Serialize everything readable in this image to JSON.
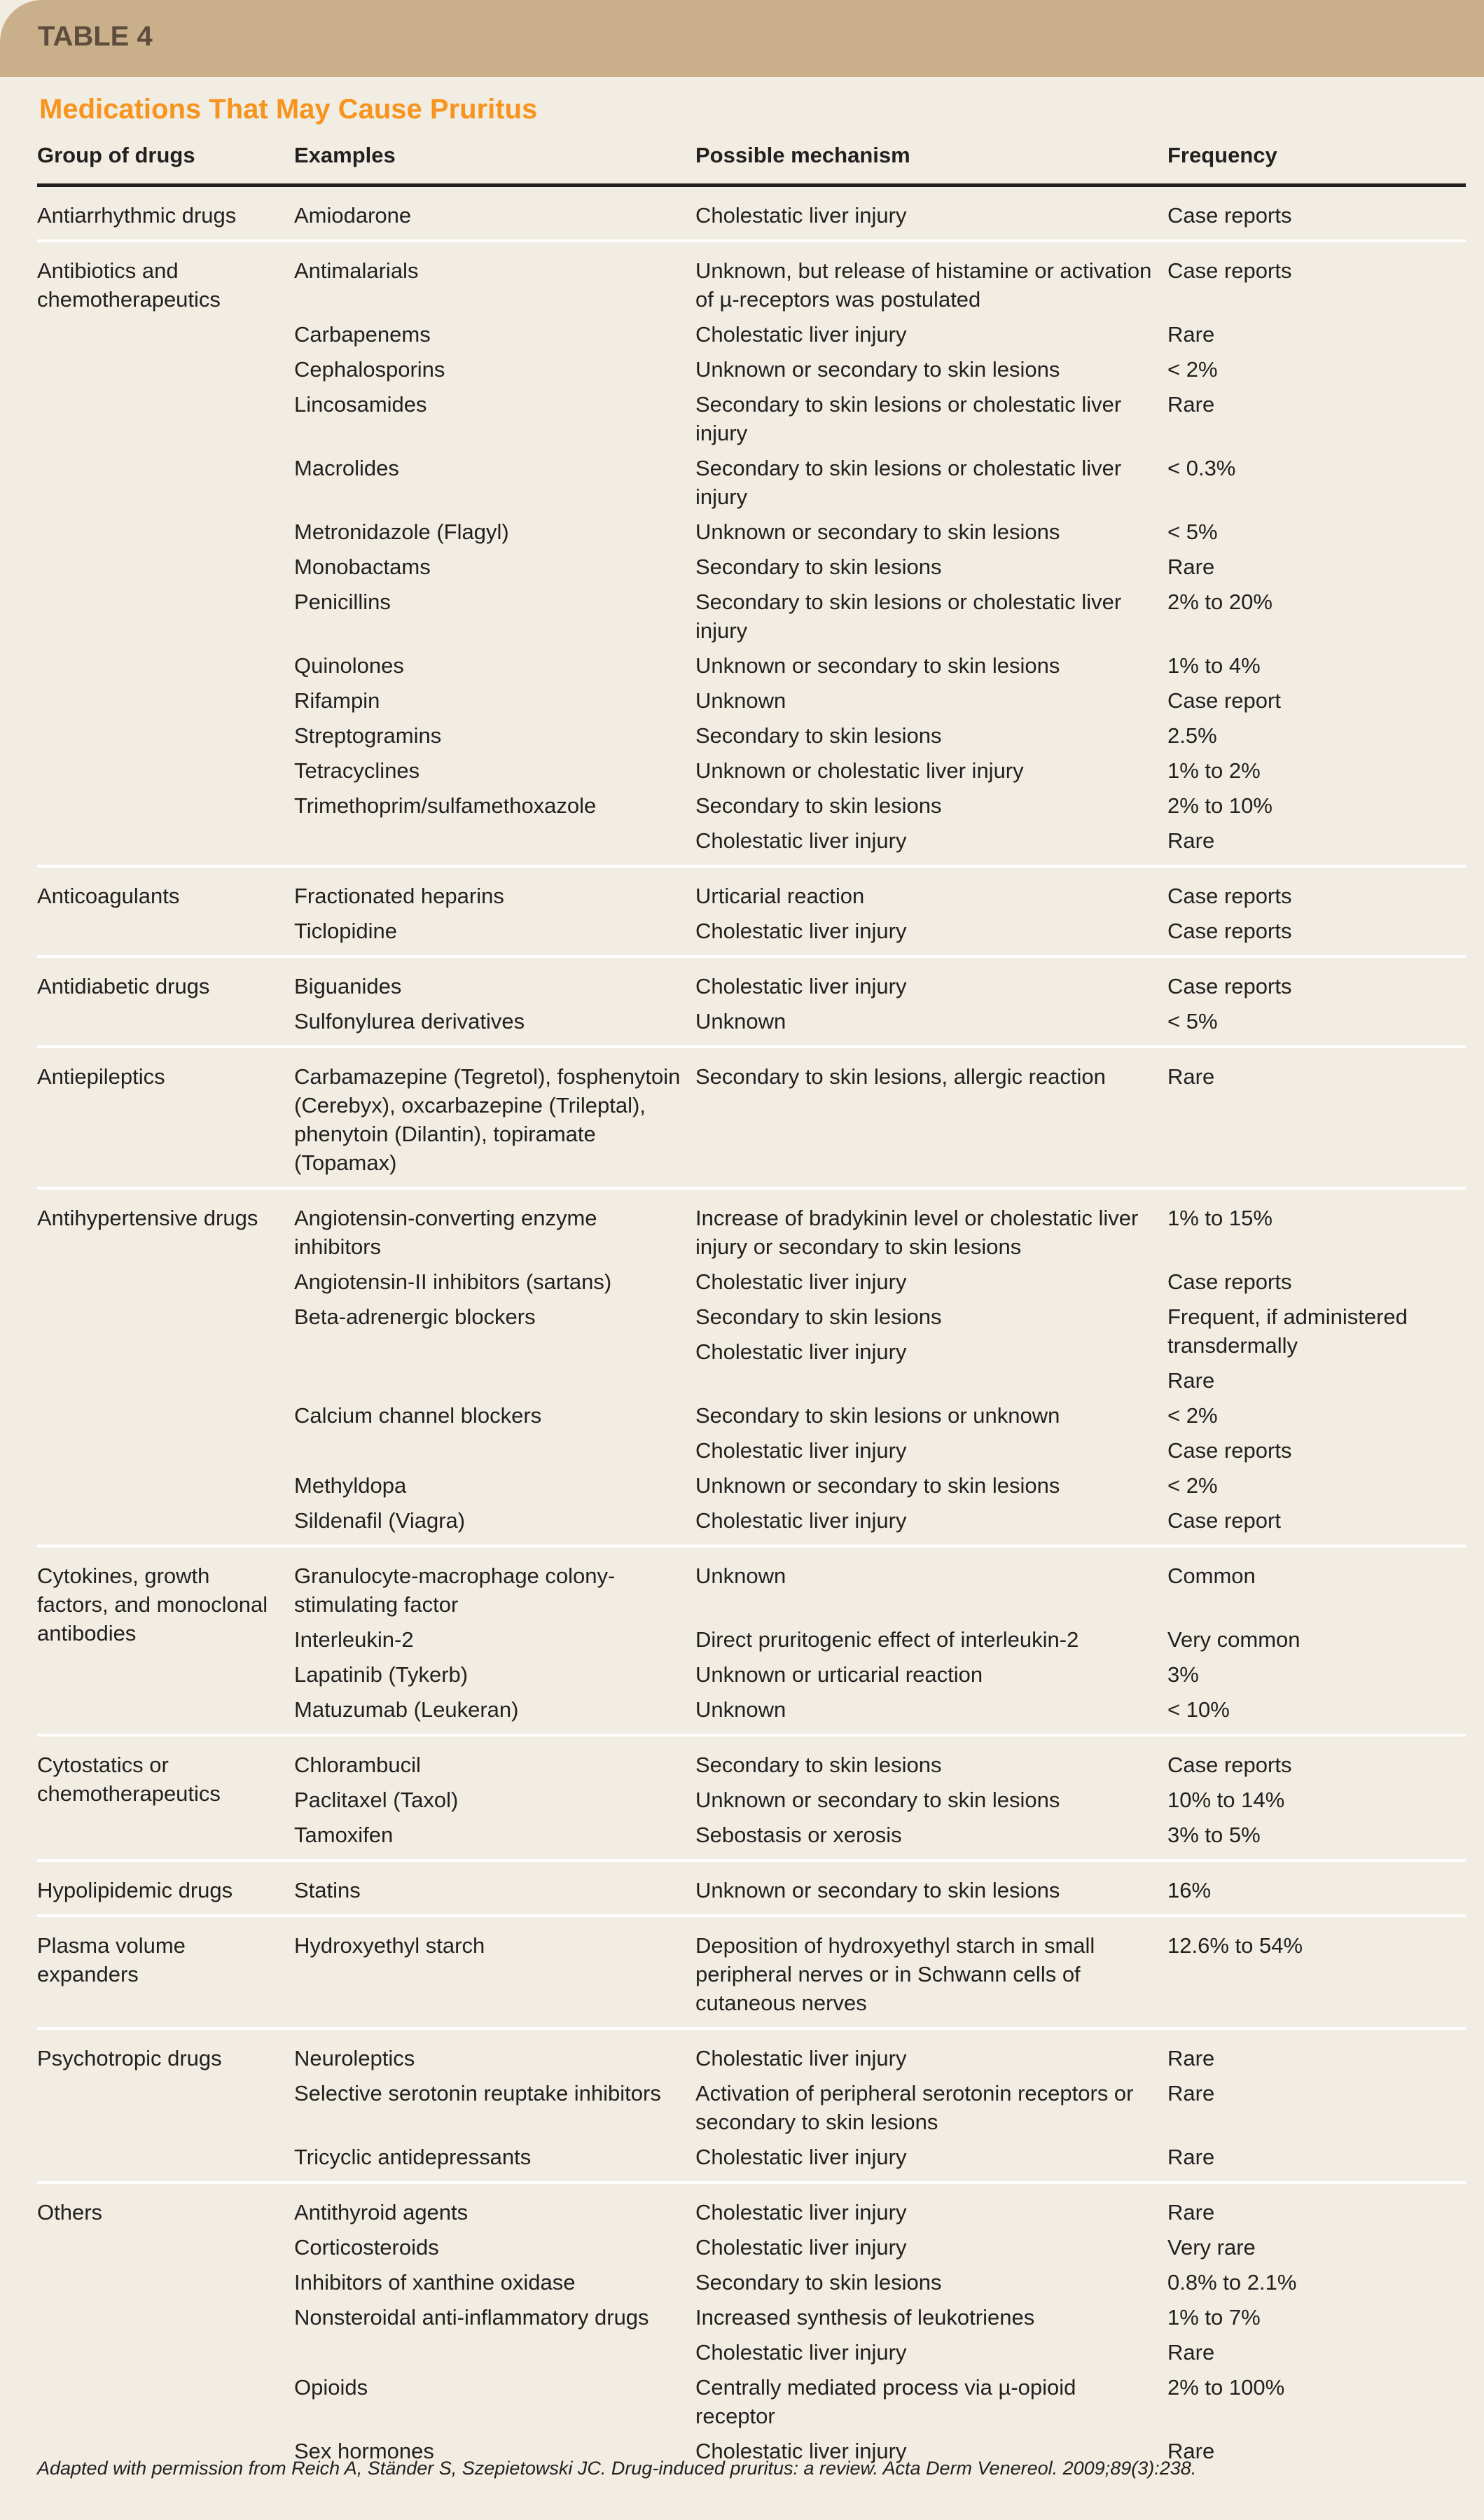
{
  "table_label": "TABLE 4",
  "title": "Medications That May Cause Pruritus",
  "colors": {
    "band": "#c9b08b",
    "title": "#f7941d",
    "background": "#f2ede3"
  },
  "headers": [
    "Group of drugs",
    "Examples",
    "Possible mechanism",
    "Frequency"
  ],
  "groups": [
    {
      "name": "Antiarrhythmic drugs",
      "rows": [
        {
          "example": "Amiodarone",
          "mechanism": "Cholestatic liver injury",
          "frequency": "Case reports"
        }
      ]
    },
    {
      "name": "Antibiotics and chemotherapeutics",
      "rows": [
        {
          "example": "Antimalarials",
          "mechanism": "Unknown, but release of histamine or activation of µ-receptors was postulated",
          "frequency": "Case reports"
        },
        {
          "example": "Carbapenems",
          "mechanism": "Cholestatic liver injury",
          "frequency": "Rare"
        },
        {
          "example": "Cephalosporins",
          "mechanism": "Unknown or secondary to skin lesions",
          "frequency": "< 2%"
        },
        {
          "example": "Lincosamides",
          "mechanism": "Secondary to skin lesions or cholestatic liver injury",
          "frequency": "Rare"
        },
        {
          "example": "Macrolides",
          "mechanism": "Secondary to skin lesions or cholestatic liver injury",
          "frequency": "< 0.3%"
        },
        {
          "example": "Metronidazole (Flagyl)",
          "mechanism": "Unknown or secondary to skin lesions",
          "frequency": "< 5%"
        },
        {
          "example": "Monobactams",
          "mechanism": "Secondary to skin lesions",
          "frequency": "Rare"
        },
        {
          "example": "Penicillins",
          "mechanism": "Secondary to skin lesions or cholestatic liver injury",
          "frequency": "2% to 20%"
        },
        {
          "example": "Quinolones",
          "mechanism": "Unknown or secondary to skin lesions",
          "frequency": "1% to 4%"
        },
        {
          "example": "Rifampin",
          "mechanism": "Unknown",
          "frequency": "Case report"
        },
        {
          "example": "Streptogramins",
          "mechanism": "Secondary to skin lesions",
          "frequency": "2.5%"
        },
        {
          "example": "Tetracyclines",
          "mechanism": "Unknown or cholestatic liver injury",
          "frequency": "1% to 2%"
        },
        {
          "example": "Trimethoprim/sulfamethoxazole",
          "mechanism": "Secondary to skin lesions",
          "frequency": "2% to 10%"
        },
        {
          "example": "",
          "mechanism": "Cholestatic liver injury",
          "frequency": "Rare"
        }
      ]
    },
    {
      "name": "Anticoagulants",
      "rows": [
        {
          "example": "Fractionated heparins",
          "mechanism": "Urticarial reaction",
          "frequency": "Case reports"
        },
        {
          "example": "Ticlopidine",
          "mechanism": "Cholestatic liver injury",
          "frequency": "Case reports"
        }
      ]
    },
    {
      "name": "Antidiabetic drugs",
      "rows": [
        {
          "example": "Biguanides",
          "mechanism": "Cholestatic liver injury",
          "frequency": "Case reports"
        },
        {
          "example": "Sulfonylurea derivatives",
          "mechanism": "Unknown",
          "frequency": "< 5%"
        }
      ]
    },
    {
      "name": "Antiepileptics",
      "rows": [
        {
          "example": "Carbamazepine (Tegretol), fosphe­nytoin (Cerebyx), oxcarbazepine (Trileptal), phenytoin (Dilantin), topiramate (Topamax)",
          "mechanism": "Secondary to skin lesions, allergic reaction",
          "frequency": "Rare"
        }
      ]
    },
    {
      "name": "Antihypertensive drugs",
      "rows": [
        {
          "example": "Angiotensin-converting enzyme inhibitors",
          "mechanism": "Increase of bradykinin level or cholestatic liver injury or secondary to skin lesions",
          "frequency": "1% to 15%"
        },
        {
          "example": "Angiotensin-II inhibitors (sartans)",
          "mechanism": "Cholestatic liver injury",
          "frequency": "Case reports"
        },
        {
          "example": "Beta-adrenergic blockers",
          "mechanism": [
            "Secondary to skin lesions",
            "Cholestatic liver injury"
          ],
          "frequency": [
            "Frequent, if administered transdermally",
            "Rare"
          ]
        },
        {
          "example": "Calcium channel blockers",
          "mechanism": "Secondary to skin lesions or unknown",
          "frequency": "< 2%"
        },
        {
          "example": "",
          "mechanism": "Cholestatic liver injury",
          "frequency": "Case reports"
        },
        {
          "example": "Methyldopa",
          "mechanism": "Unknown or secondary to skin lesions",
          "frequency": "< 2%"
        },
        {
          "example": "Sildenafil (Viagra)",
          "mechanism": "Cholestatic liver injury",
          "frequency": "Case report"
        }
      ]
    },
    {
      "name": "Cytokines, growth factors, and mono­clonal antibodies",
      "rows": [
        {
          "example": "Granulocyte-macrophage colony-stimulating factor",
          "mechanism": "Unknown",
          "frequency": "Common"
        },
        {
          "example": "Interleukin-2",
          "mechanism": "Direct pruritogenic effect of interleukin-2",
          "frequency": "Very common"
        },
        {
          "example": "Lapatinib (Tykerb)",
          "mechanism": "Unknown or urticarial reaction",
          "frequency": "3%"
        },
        {
          "example": "Matuzumab (Leukeran)",
          "mechanism": "Unknown",
          "frequency": "< 10%"
        }
      ]
    },
    {
      "name": "Cytostatics or chemotherapeutics",
      "rows": [
        {
          "example": "Chlorambucil",
          "mechanism": "Secondary to skin lesions",
          "frequency": "Case reports"
        },
        {
          "example": "Paclitaxel (Taxol)",
          "mechanism": "Unknown or secondary to skin lesions",
          "frequency": "10% to 14%"
        },
        {
          "example": "Tamoxifen",
          "mechanism": "Sebostasis or xerosis",
          "frequency": "3% to 5%"
        }
      ]
    },
    {
      "name": "Hypolipidemic drugs",
      "rows": [
        {
          "example": "Statins",
          "mechanism": "Unknown or secondary to skin lesions",
          "frequency": "16%"
        }
      ]
    },
    {
      "name": "Plasma volume expanders",
      "rows": [
        {
          "example": "Hydroxyethyl starch",
          "mechanism": "Deposition of hydroxyethyl starch in small peripheral nerves or in Schwann cells of cutaneous nerves",
          "frequency": "12.6% to 54%"
        }
      ]
    },
    {
      "name": "Psychotropic drugs",
      "rows": [
        {
          "example": "Neuroleptics",
          "mechanism": "Cholestatic liver injury",
          "frequency": "Rare"
        },
        {
          "example": "Selective serotonin reuptake inhibitors",
          "mechanism": "Activation of peripheral serotonin recep­tors or secondary to skin lesions",
          "frequency": "Rare"
        },
        {
          "example": "Tricyclic antidepressants",
          "mechanism": "Cholestatic liver injury",
          "frequency": "Rare"
        }
      ]
    },
    {
      "name": "Others",
      "rows": [
        {
          "example": "Antithyroid agents",
          "mechanism": "Cholestatic liver injury",
          "frequency": "Rare"
        },
        {
          "example": "Corticosteroids",
          "mechanism": "Cholestatic liver injury",
          "frequency": "Very rare"
        },
        {
          "example": "Inhibitors of xanthine oxidase",
          "mechanism": "Secondary to skin lesions",
          "frequency": "0.8% to 2.1%"
        },
        {
          "example": "Nonsteroidal anti-inflammatory drugs",
          "mechanism": [
            "Increased synthesis of leukotrienes",
            "Cholestatic liver injury"
          ],
          "frequency": [
            "1% to 7%",
            "Rare"
          ]
        },
        {
          "example": "Opioids",
          "mechanism": "Centrally mediated process via µ-opioid receptor",
          "frequency": "2% to 100%"
        },
        {
          "example": "Sex hormones",
          "mechanism": "Cholestatic liver injury",
          "frequency": "Rare"
        }
      ]
    }
  ],
  "footnote": "Adapted with permission from Reich A, Ständer S, Szepietowski JC. Drug-induced pruritus: a review. Acta Derm Venereol. 2009;89(3):238."
}
